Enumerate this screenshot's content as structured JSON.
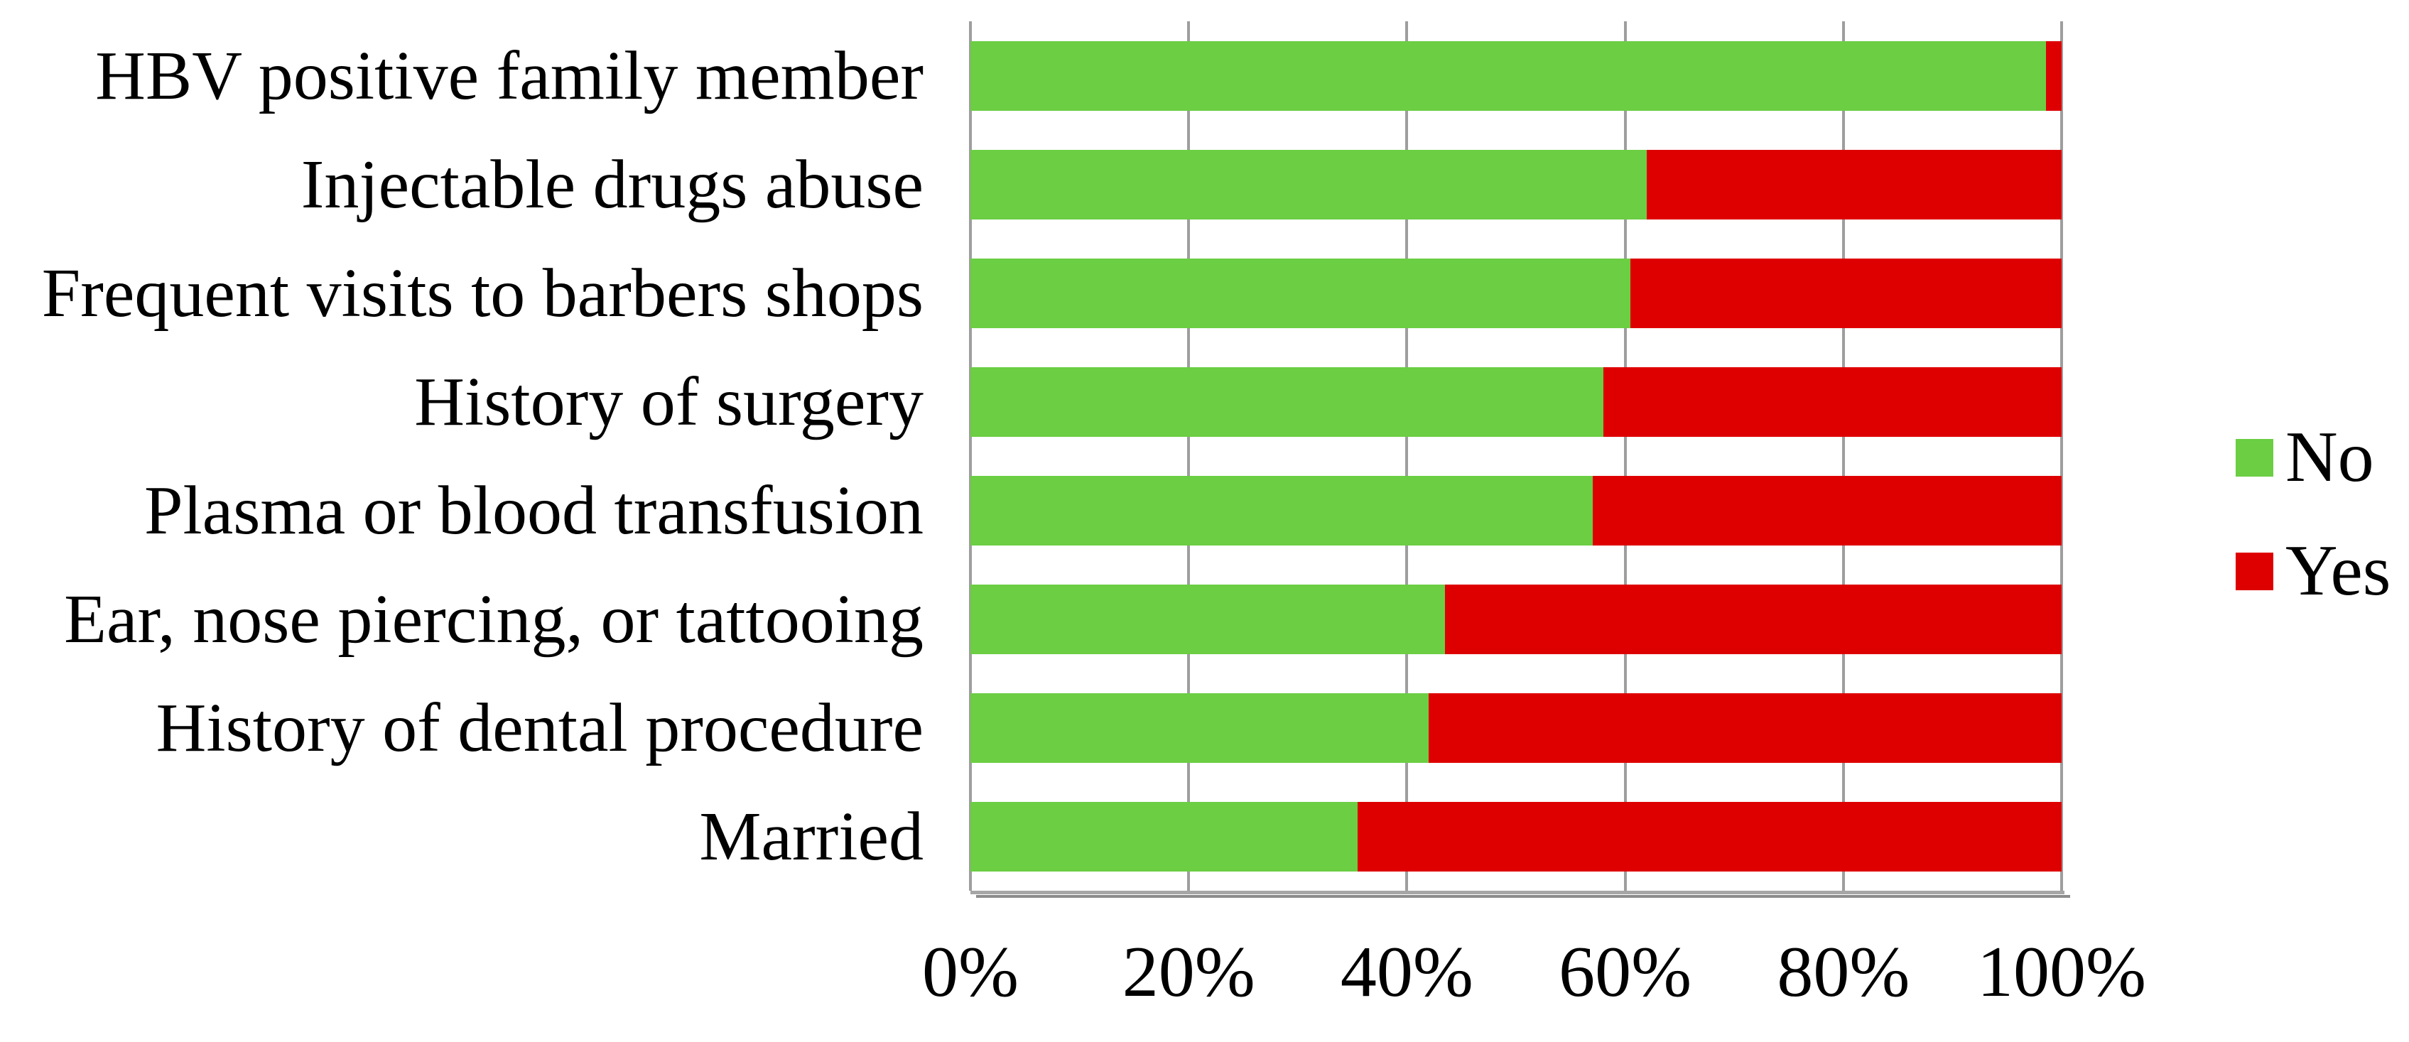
{
  "chart_data": {
    "type": "bar",
    "orientation": "horizontal",
    "stacked": true,
    "unit": "percent",
    "title": "",
    "categories": [
      "HBV positive family member",
      "Injectable drugs abuse",
      "Frequent visits to barbers shops",
      "History of surgery",
      "Plasma or blood transfusion",
      "Ear, nose piercing, or tattooing",
      "History of dental procedure",
      "Married"
    ],
    "series": [
      {
        "name": "No",
        "color": "#6BCE43",
        "values": [
          98.6,
          62.0,
          60.5,
          58.0,
          57.0,
          43.5,
          42.0,
          35.5
        ]
      },
      {
        "name": "Yes",
        "color": "#DE0000",
        "values": [
          1.4,
          38.0,
          39.5,
          42.0,
          43.0,
          56.5,
          58.0,
          64.5
        ]
      }
    ],
    "x_axis": {
      "min": 0,
      "max": 100,
      "tick_step": 20,
      "tick_labels": [
        "0%",
        "20%",
        "40%",
        "60%",
        "80%",
        "100%"
      ]
    },
    "legend": {
      "position": "right",
      "entries": [
        "No",
        "Yes"
      ]
    },
    "grid": true
  },
  "colors": {
    "no_segment": "#6BCE43",
    "yes_segment": "#DE0000",
    "gridline": "#9E9E9E",
    "axis_line": "#A6A6A6",
    "text": "#000000",
    "background": "#FFFFFF"
  }
}
